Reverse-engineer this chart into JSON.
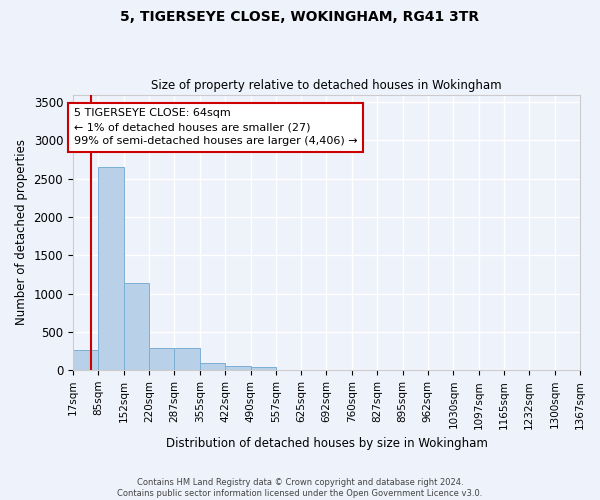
{
  "title": "5, TIGERSEYE CLOSE, WOKINGHAM, RG41 3TR",
  "subtitle": "Size of property relative to detached houses in Wokingham",
  "xlabel": "Distribution of detached houses by size in Wokingham",
  "ylabel": "Number of detached properties",
  "bar_color": "#b8d0e8",
  "bar_edge_color": "#7aafd4",
  "background_color": "#eef2fa",
  "grid_color": "#ffffff",
  "annotation_box_color": "#cc0000",
  "annotation_text": "5 TIGERSEYE CLOSE: 64sqm\n← 1% of detached houses are smaller (27)\n99% of semi-detached houses are larger (4,406) →",
  "property_line_x": 64,
  "ylim": [
    0,
    3600
  ],
  "yticks": [
    0,
    500,
    1000,
    1500,
    2000,
    2500,
    3000,
    3500
  ],
  "bin_edges": [
    17,
    85,
    152,
    220,
    287,
    355,
    422,
    490,
    557,
    625,
    692,
    760,
    827,
    895,
    962,
    1030,
    1097,
    1165,
    1232,
    1300,
    1367
  ],
  "bar_heights": [
    270,
    2650,
    1140,
    285,
    285,
    95,
    55,
    40,
    0,
    0,
    0,
    0,
    0,
    0,
    0,
    0,
    0,
    0,
    0,
    0
  ],
  "footer_line1": "Contains HM Land Registry data © Crown copyright and database right 2024.",
  "footer_line2": "Contains public sector information licensed under the Open Government Licence v3.0."
}
